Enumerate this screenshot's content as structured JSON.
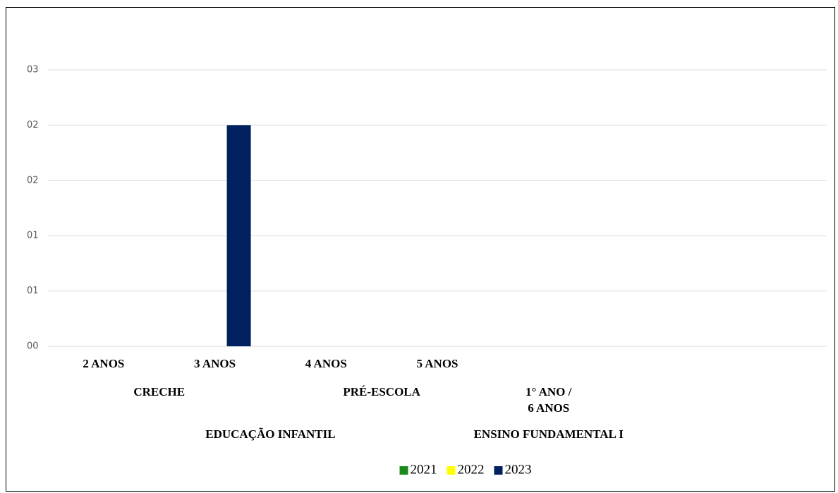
{
  "chart_data": {
    "type": "bar",
    "categories": [
      "2 ANOS",
      "3 ANOS",
      "4 ANOS",
      "5 ANOS",
      null,
      null,
      null
    ],
    "level2_groups": [
      {
        "label": [
          "CRECHE"
        ],
        "categories": [
          0,
          1
        ]
      },
      {
        "label": [
          "PRÉ-ESCOLA"
        ],
        "categories": [
          2,
          3
        ]
      },
      {
        "label": [
          "1° ANO /",
          "6 ANOS"
        ],
        "categories": [
          4,
          4
        ]
      }
    ],
    "level3_groups": [
      {
        "label": "EDUCAÇÃO INFANTIL",
        "categories": [
          0,
          3
        ]
      },
      {
        "label": "ENSINO FUNDAMENTAL I",
        "categories": [
          4,
          4
        ]
      }
    ],
    "series": [
      {
        "name": "2021",
        "color": "#1a8a1a",
        "values": [
          0,
          0,
          0,
          0,
          0,
          null,
          null
        ]
      },
      {
        "name": "2022",
        "color": "#ffff00",
        "values": [
          0,
          0,
          0,
          0,
          0,
          null,
          null
        ]
      },
      {
        "name": "2023",
        "color": "#002060",
        "values": [
          0,
          2,
          0,
          0,
          0,
          null,
          null
        ]
      }
    ],
    "ylim": [
      0,
      2.5
    ],
    "yticks": [
      {
        "value": 0,
        "label": "00"
      },
      {
        "value": 0.5,
        "label": "01"
      },
      {
        "value": 1,
        "label": "01"
      },
      {
        "value": 1.5,
        "label": "02"
      },
      {
        "value": 2,
        "label": "02"
      },
      {
        "value": 2.5,
        "label": "03"
      }
    ],
    "grid": true,
    "legend": "bottom"
  }
}
